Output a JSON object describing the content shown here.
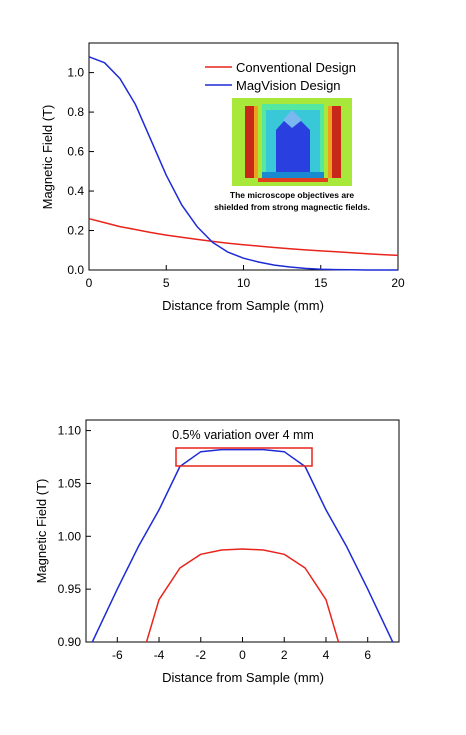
{
  "chart_data": [
    {
      "type": "line",
      "title": "",
      "xlabel": "Distance from Sample (mm)",
      "ylabel": "Magnetic Field (T)",
      "xlim": [
        0,
        20
      ],
      "ylim": [
        0,
        1.15
      ],
      "xticks": [
        "0",
        "5",
        "10",
        "15",
        "20"
      ],
      "yticks": [
        "0.0",
        "0.2",
        "0.4",
        "0.6",
        "0.8",
        "1.0"
      ],
      "legend_position": "top-right",
      "series": [
        {
          "name": "Conventional Design",
          "color": "#e8241c",
          "x": [
            0,
            1,
            2,
            3,
            4,
            5,
            6,
            7,
            8,
            9,
            10,
            11,
            12,
            13,
            14,
            15,
            16,
            17,
            18,
            19,
            20
          ],
          "y": [
            0.26,
            0.24,
            0.22,
            0.205,
            0.19,
            0.177,
            0.166,
            0.155,
            0.145,
            0.136,
            0.128,
            0.121,
            0.114,
            0.108,
            0.102,
            0.097,
            0.092,
            0.087,
            0.082,
            0.078,
            0.074
          ]
        },
        {
          "name": "MagVision Design",
          "color": "#1d2bd6",
          "x": [
            0,
            1,
            2,
            3,
            4,
            5,
            6,
            7,
            8,
            9,
            10,
            11,
            12,
            13,
            14,
            15,
            16,
            17,
            18,
            19,
            20
          ],
          "y": [
            1.08,
            1.05,
            0.97,
            0.84,
            0.66,
            0.48,
            0.33,
            0.22,
            0.14,
            0.09,
            0.06,
            0.04,
            0.025,
            0.015,
            0.008,
            0.004,
            0.002,
            0.001,
            0.0,
            0.0,
            0.0
          ]
        }
      ],
      "inset": {
        "caption_line1": "The microscope objectives are",
        "caption_line2": "shielded from strong magnectic fields."
      }
    },
    {
      "type": "line",
      "title": "",
      "xlabel": "Distance from Sample (mm)",
      "ylabel": "Magnetic Field (T)",
      "xlim": [
        -7.5,
        7.5
      ],
      "ylim": [
        0.9,
        1.11
      ],
      "xticks": [
        "-6",
        "-4",
        "-2",
        "0",
        "2",
        "4",
        "6"
      ],
      "yticks": [
        "0.90",
        "0.95",
        "1.00",
        "1.05",
        "1.10"
      ],
      "annotation": "0.5% variation over 4 mm",
      "series": [
        {
          "color": "#1d2bd6",
          "x": [
            -7.2,
            -6,
            -5,
            -4,
            -3,
            -2,
            -1,
            0,
            1,
            2,
            3,
            4,
            5,
            6,
            7.2
          ],
          "y": [
            0.9,
            0.95,
            0.99,
            1.025,
            1.066,
            1.08,
            1.082,
            1.082,
            1.082,
            1.08,
            1.066,
            1.025,
            0.99,
            0.95,
            0.9
          ]
        },
        {
          "color": "#e8241c",
          "x": [
            -4.6,
            -4,
            -3,
            -2,
            -1,
            0,
            1,
            2,
            3,
            4,
            4.6
          ],
          "y": [
            0.9,
            0.94,
            0.97,
            0.983,
            0.987,
            0.988,
            0.987,
            0.983,
            0.97,
            0.94,
            0.9
          ]
        }
      ]
    }
  ]
}
